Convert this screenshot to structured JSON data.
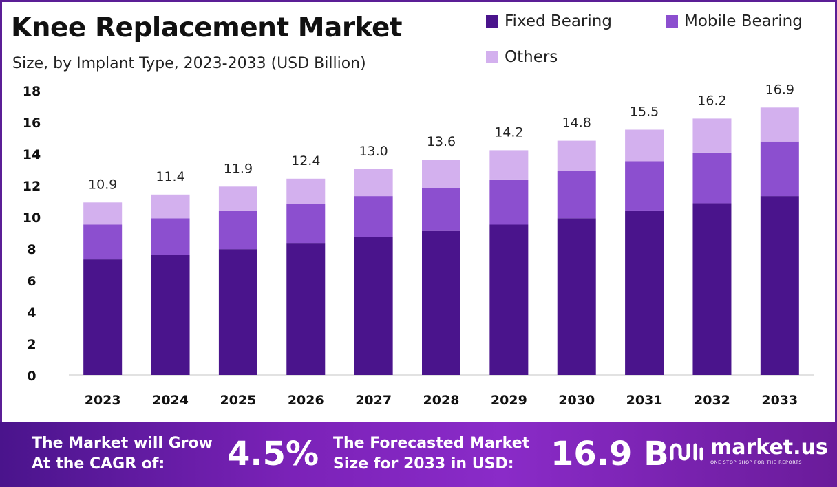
{
  "header": {
    "title": "Knee Replacement Market",
    "subtitle": "Size, by Implant Type, 2023-2033 (USD Billion)"
  },
  "colors": {
    "fixed": "#4a148c",
    "mobile": "#8c4fcf",
    "others": "#d3b0ee",
    "grid": "#d9d9d9",
    "footer_start": "#4a148c",
    "footer_end": "#8a2bc8"
  },
  "chart_data": {
    "type": "bar",
    "stacked": true,
    "categories": [
      "2023",
      "2024",
      "2025",
      "2026",
      "2027",
      "2028",
      "2029",
      "2030",
      "2031",
      "2032",
      "2033"
    ],
    "series": [
      {
        "name": "Fixed Bearing",
        "values": [
          7.3,
          7.6,
          7.95,
          8.3,
          8.7,
          9.1,
          9.5,
          9.9,
          10.35,
          10.85,
          11.3
        ]
      },
      {
        "name": "Mobile Bearing",
        "values": [
          2.2,
          2.3,
          2.4,
          2.5,
          2.6,
          2.7,
          2.85,
          3.0,
          3.15,
          3.2,
          3.45
        ]
      },
      {
        "name": "Others",
        "values": [
          1.4,
          1.5,
          1.55,
          1.6,
          1.7,
          1.8,
          1.85,
          1.9,
          2.0,
          2.15,
          2.15
        ]
      }
    ],
    "totals": [
      "10.9",
      "11.4",
      "11.9",
      "12.4",
      "13.0",
      "13.6",
      "14.2",
      "14.8",
      "15.5",
      "16.2",
      "16.9"
    ],
    "yticks": [
      "0",
      "2",
      "4",
      "6",
      "8",
      "10",
      "12",
      "14",
      "16",
      "18"
    ],
    "ylim": [
      0,
      18
    ],
    "legend_position": "top-right",
    "grid": false
  },
  "legend": [
    {
      "label": "Fixed Bearing"
    },
    {
      "label": "Mobile Bearing"
    },
    {
      "label": "Others"
    }
  ],
  "footer": {
    "cagr_label_line1": "The Market will Grow",
    "cagr_label_line2": "At the CAGR of:",
    "cagr_value": "4.5%",
    "forecast_label_line1": "The Forecasted Market",
    "forecast_label_line2": "Size for 2033 in USD:",
    "forecast_value": "16.9 B",
    "brand_name": "market.us",
    "brand_tagline": "ONE STOP SHOP FOR THE REPORTS"
  }
}
